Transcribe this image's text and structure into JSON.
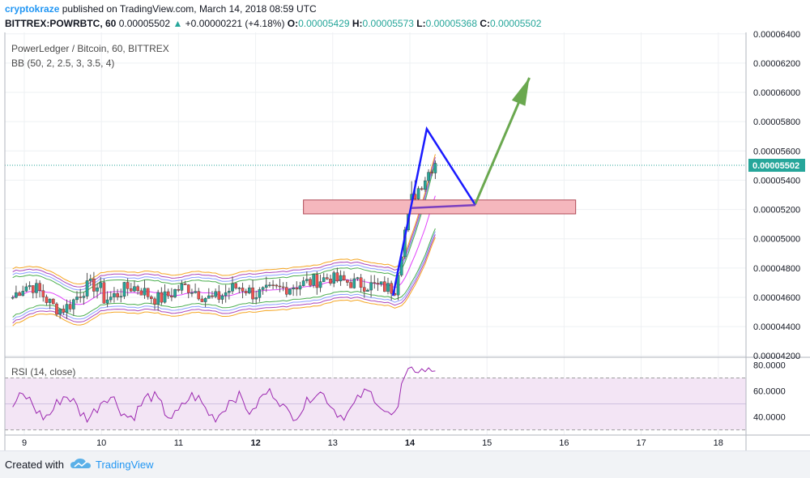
{
  "header": {
    "author": "cryptokraze",
    "published_text": "published on TradingView.com, March 14, 2018 08:59 UTC",
    "symbol_line": "BITTREX:POWRBTC, 60",
    "last_price": "0.00005502",
    "change": "+0.00000221 (+4.18%)",
    "o_label": "O:",
    "o_value": "0.00005429",
    "h_label": "H:",
    "h_value": "0.00005573",
    "l_label": "L:",
    "l_value": "0.00005368",
    "c_label": "C:",
    "c_value": "0.00005502",
    "up_glyph": "▲"
  },
  "legend": {
    "title": "PowerLedger / Bitcoin, 60, BITTREX",
    "bb": "BB (50, 2, 2.5, 3, 3.5, 4)",
    "rsi": "RSI (14, close)"
  },
  "footer": {
    "created_with": "Created with",
    "brand": "TradingView"
  },
  "colors": {
    "up": "#26a69a",
    "down": "#ef5350",
    "bb_basis": "#e040fb",
    "bb_band_2": "#4caf50",
    "bb_band_2_5": "#8c9eff",
    "bb_band_3": "#f5a623",
    "bb_band_3_5": "#ab47bc",
    "rsi_line": "#9c27b0",
    "rsi_fill": "#f3e5f5",
    "zone": "#f5b7bd",
    "pattern": "#1a1aff",
    "zone_line": "#7b3fbf",
    "arrow": "#6aa84f",
    "price_tag": "#26a69a"
  },
  "chart_data": {
    "type": "candlestick",
    "title": "PowerLedger / Bitcoin, 60, BITTREX",
    "x_ticks": [
      "9",
      "10",
      "11",
      "12",
      "13",
      "14",
      "15",
      "16",
      "17",
      "18"
    ],
    "y_ticks": [
      "0.00006400",
      "0.00006200",
      "0.00006000",
      "0.00005800",
      "0.00005600",
      "0.00005400",
      "0.00005200",
      "0.00005000",
      "0.00004800",
      "0.00004600",
      "0.00004400",
      "0.00004200"
    ],
    "ylim": [
      4.19e-05,
      6.41e-05
    ],
    "last_price_label": "0.00005502",
    "last_price": 5.502e-05,
    "rsi": {
      "y_ticks": [
        "80.0000",
        "60.0000",
        "40.0000"
      ],
      "ylim": [
        26,
        84
      ],
      "overbought": 70,
      "oversold": 30
    },
    "support_zone": {
      "from_day": 12.62,
      "to_day": 16.15,
      "low": 5.17e-05,
      "high": 5.265e-05
    },
    "pattern_points": [
      {
        "day": 13.78,
        "price": 4.61e-05
      },
      {
        "day": 14.22,
        "price": 5.75e-05
      },
      {
        "day": 14.85,
        "price": 5.23e-05
      }
    ],
    "zone_line": [
      {
        "day": 14.02,
        "price": 5.21e-05
      },
      {
        "day": 14.85,
        "price": 5.23e-05
      }
    ],
    "arrow": [
      {
        "day": 14.85,
        "price": 5.24e-05
      },
      {
        "day": 15.55,
        "price": 6.1e-05
      }
    ]
  }
}
